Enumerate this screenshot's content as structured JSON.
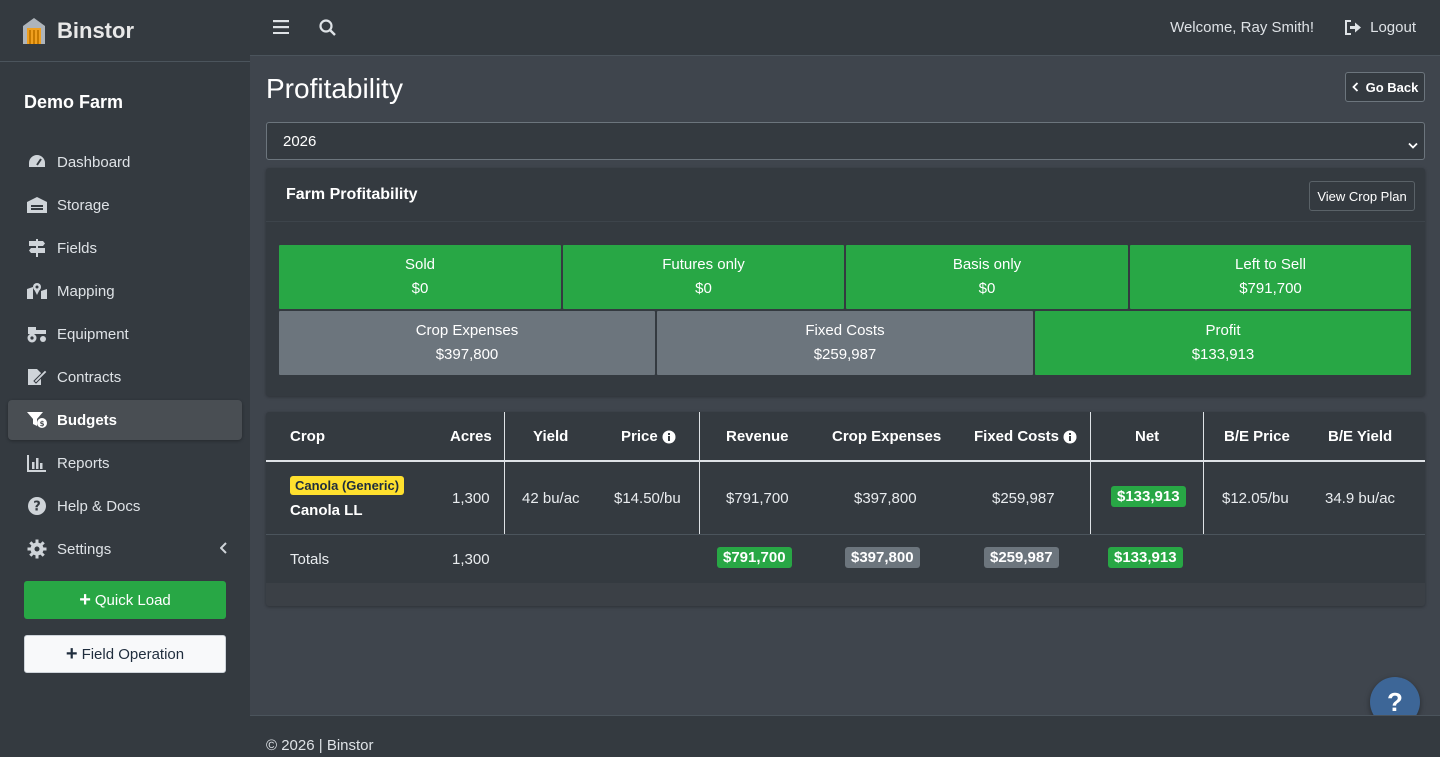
{
  "app": {
    "name": "Binstor",
    "farm": "Demo Farm"
  },
  "sidebar": {
    "items": [
      {
        "label": "Dashboard",
        "icon": "tachometer-icon"
      },
      {
        "label": "Storage",
        "icon": "warehouse-icon"
      },
      {
        "label": "Fields",
        "icon": "signpost-icon"
      },
      {
        "label": "Mapping",
        "icon": "map-marked-icon"
      },
      {
        "label": "Equipment",
        "icon": "tractor-icon"
      },
      {
        "label": "Contracts",
        "icon": "file-signature-icon"
      },
      {
        "label": "Budgets",
        "icon": "money-funnel-icon",
        "active": true
      },
      {
        "label": "Reports",
        "icon": "bar-chart-icon"
      },
      {
        "label": "Help & Docs",
        "icon": "question-circle-icon"
      },
      {
        "label": "Settings",
        "icon": "gear-icon"
      }
    ],
    "quick_load": "Quick Load",
    "field_operation": "Field Operation"
  },
  "topbar": {
    "welcome": "Welcome, Ray Smith!",
    "logout": "Logout"
  },
  "page": {
    "title": "Profitability",
    "go_back": "Go Back",
    "year_selected": "2026"
  },
  "summary": {
    "title": "Farm Profitability",
    "view_crop_plan": "View Crop Plan",
    "tiles_row1": [
      {
        "label": "Sold",
        "value": "$0"
      },
      {
        "label": "Futures only",
        "value": "$0"
      },
      {
        "label": "Basis only",
        "value": "$0"
      },
      {
        "label": "Left to Sell",
        "value": "$791,700"
      }
    ],
    "tiles_row2": [
      {
        "label": "Crop Expenses",
        "value": "$397,800"
      },
      {
        "label": "Fixed Costs",
        "value": "$259,987"
      },
      {
        "label": "Profit",
        "value": "$133,913"
      }
    ]
  },
  "table": {
    "headers": {
      "crop": "Crop",
      "acres": "Acres",
      "yield": "Yield",
      "price": "Price",
      "revenue": "Revenue",
      "crop_expenses": "Crop Expenses",
      "fixed_costs": "Fixed Costs",
      "net": "Net",
      "be_price": "B/E Price",
      "be_yield": "B/E Yield"
    },
    "row": {
      "badge": "Canola (Generic)",
      "crop": "Canola LL",
      "acres": "1,300",
      "yield": "42 bu/ac",
      "price": "$14.50/bu",
      "revenue": "$791,700",
      "crop_expenses": "$397,800",
      "fixed_costs": "$259,987",
      "net": "$133,913",
      "be_price": "$12.05/bu",
      "be_yield": "34.9 bu/ac"
    },
    "totals": {
      "label": "Totals",
      "acres": "1,300",
      "revenue": "$791,700",
      "crop_expenses": "$397,800",
      "fixed_costs": "$259,987",
      "net": "$133,913"
    }
  },
  "footer": {
    "text": "© 2026 | Binstor"
  },
  "help_fab": "?",
  "colors": {
    "green": "#28a745",
    "gray": "#6c757d",
    "badge_yellow": "#ffe02e",
    "sidebar": "#343a40"
  }
}
